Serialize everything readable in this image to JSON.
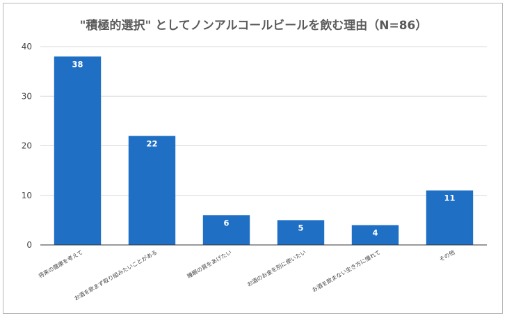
{
  "chart_data": {
    "type": "bar",
    "title": "\"積極的選択\" としてノンアルコールビールを飲む理由（N=86）",
    "xlabel": "",
    "ylabel": "",
    "categories": [
      "将来の健康を考えて",
      "お酒を飲まず取り組みたいことがある",
      "睡眠の質をあげたい",
      "お酒のお金を別に使いたい",
      "お酒を飲まない生き方に憧れて",
      "その他"
    ],
    "values": [
      38,
      22,
      6,
      5,
      4,
      11
    ],
    "ylim": [
      0,
      40
    ],
    "yticks": [
      0,
      10,
      20,
      30,
      40
    ],
    "grid": true,
    "legend": "none",
    "bar_color": "#1f6fc5"
  }
}
